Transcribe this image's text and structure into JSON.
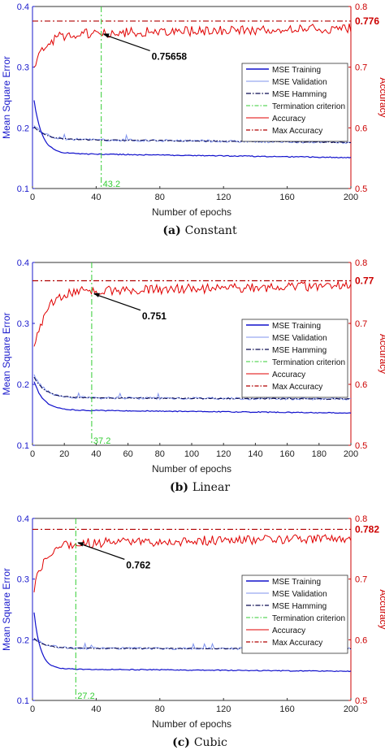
{
  "chart_data": [
    {
      "type": "line",
      "caption_letter": "(a)",
      "caption_text": "Constant",
      "xlabel": "Number of epochs",
      "ylabel_left": "Mean Square Error",
      "ylabel_right": "Accuracy",
      "xlim": [
        0,
        200
      ],
      "ylim_left": [
        0.1,
        0.4
      ],
      "ylim_right": [
        0.5,
        0.8
      ],
      "x_ticks": [
        "0",
        "40",
        "80",
        "120",
        "160",
        "200"
      ],
      "y_left_ticks": [
        "0.1",
        "0.2",
        "0.3",
        "0.4"
      ],
      "y_right_ticks": [
        "0.5",
        "0.6",
        "0.7",
        "0.8"
      ],
      "legend": [
        "MSE Training",
        "MSE Validation",
        "MSE Hamming",
        "Termination criterion",
        "Accuracy",
        "Max Accuracy"
      ],
      "termination_epoch": 43.2,
      "termination_label": "43.2",
      "max_accuracy": 0.776,
      "max_accuracy_label": "0.776",
      "annotation_value": 0.75658,
      "annotation_label": "0.75658",
      "series": {
        "mse_training": {
          "start": 0.245,
          "plateau": 0.158,
          "end": 0.151,
          "rate": 5
        },
        "mse_validation": {
          "start": 0.205,
          "plateau": 0.181,
          "end": 0.176
        },
        "mse_hamming": {
          "start": 0.202,
          "plateau": 0.181,
          "end": 0.176
        },
        "accuracy": {
          "start": 0.695,
          "plateau": 0.755,
          "end": 0.764
        }
      }
    },
    {
      "type": "line",
      "caption_letter": "(b)",
      "caption_text": "Linear",
      "xlabel": "Number of epochs",
      "ylabel_left": "Mean Square Error",
      "ylabel_right": "Accuracy",
      "xlim": [
        0,
        200
      ],
      "ylim_left": [
        0.1,
        0.4
      ],
      "ylim_right": [
        0.5,
        0.8
      ],
      "x_ticks": [
        "0",
        "20",
        "40",
        "60",
        "80",
        "100",
        "120",
        "140",
        "160",
        "180",
        "200"
      ],
      "y_left_ticks": [
        "0.1",
        "0.2",
        "0.3",
        "0.4"
      ],
      "y_right_ticks": [
        "0.5",
        "0.6",
        "0.7",
        "0.8"
      ],
      "legend": [
        "MSE Training",
        "MSE Validation",
        "MSE Hamming",
        "Termination criterion",
        "Accuracy",
        "Max Accuracy"
      ],
      "termination_epoch": 37.2,
      "termination_label": "37.2",
      "max_accuracy": 0.77,
      "max_accuracy_label": "0.77",
      "annotation_value": 0.751,
      "annotation_label": "0.751",
      "series": {
        "mse_training": {
          "start": 0.205,
          "plateau": 0.158,
          "end": 0.153,
          "rate": 6
        },
        "mse_validation": {
          "start": 0.215,
          "plateau": 0.178,
          "end": 0.176
        },
        "mse_hamming": {
          "start": 0.212,
          "plateau": 0.178,
          "end": 0.176
        },
        "accuracy": {
          "start": 0.655,
          "plateau": 0.752,
          "end": 0.762
        }
      }
    },
    {
      "type": "line",
      "caption_letter": "(c)",
      "caption_text": "Cubic",
      "xlabel": "Number of epochs",
      "ylabel_left": "Mean Square Error",
      "ylabel_right": "Accuracy",
      "xlim": [
        0,
        200
      ],
      "ylim_left": [
        0.1,
        0.4
      ],
      "ylim_right": [
        0.5,
        0.8
      ],
      "x_ticks": [
        "0",
        "40",
        "80",
        "120",
        "160",
        "200"
      ],
      "y_left_ticks": [
        "0.1",
        "0.2",
        "0.3",
        "0.4"
      ],
      "y_right_ticks": [
        "0.5",
        "0.6",
        "0.7",
        "0.8"
      ],
      "legend": [
        "MSE Training",
        "MSE Validation",
        "MSE Hamming",
        "Termination criterion",
        "Accuracy",
        "Max Accuracy"
      ],
      "termination_epoch": 27.2,
      "termination_label": "27.2",
      "max_accuracy": 0.782,
      "max_accuracy_label": "0.782",
      "annotation_value": 0.762,
      "annotation_label": "0.762",
      "series": {
        "mse_training": {
          "start": 0.245,
          "plateau": 0.152,
          "end": 0.148,
          "rate": 4
        },
        "mse_validation": {
          "start": 0.203,
          "plateau": 0.186,
          "end": 0.185
        },
        "mse_hamming": {
          "start": 0.202,
          "plateau": 0.186,
          "end": 0.185
        },
        "accuracy": {
          "start": 0.685,
          "plateau": 0.758,
          "end": 0.768
        }
      }
    }
  ],
  "colors": {
    "mse_training": "#1010cc",
    "mse_validation": "#7f93ee",
    "mse_hamming": "#0a0a50",
    "termination": "#33cc33",
    "accuracy": "#e00000",
    "max_accuracy": "#b00000",
    "left_axis": "#1a1acc",
    "right_axis": "#cc0000"
  }
}
